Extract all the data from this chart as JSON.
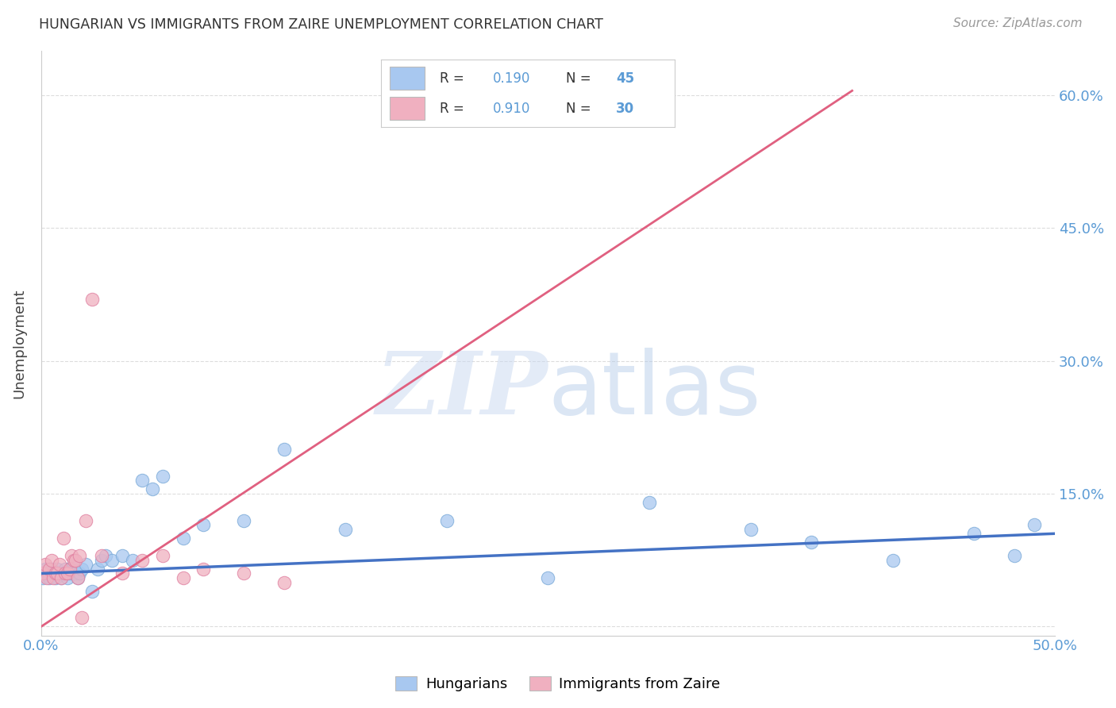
{
  "title": "HUNGARIAN VS IMMIGRANTS FROM ZAIRE UNEMPLOYMENT CORRELATION CHART",
  "source": "Source: ZipAtlas.com",
  "ylabel": "Unemployment",
  "y_ticks": [
    0.0,
    0.15,
    0.3,
    0.45,
    0.6
  ],
  "y_tick_labels_right": [
    "",
    "15.0%",
    "30.0%",
    "45.0%",
    "60.0%"
  ],
  "xlim": [
    0.0,
    0.5
  ],
  "ylim": [
    -0.01,
    0.65
  ],
  "color_blue": "#A8C8F0",
  "color_blue_edge": "#7AAAD8",
  "color_pink": "#F0B0C0",
  "color_pink_edge": "#E080A0",
  "color_blue_line": "#4472C4",
  "color_pink_line": "#E06080",
  "color_axis_label": "#5B9BD5",
  "color_r_text": "#333333",
  "color_n_text": "#5B9BD5",
  "blue_x": [
    0.001,
    0.002,
    0.003,
    0.004,
    0.005,
    0.006,
    0.007,
    0.008,
    0.009,
    0.01,
    0.011,
    0.012,
    0.013,
    0.014,
    0.015,
    0.016,
    0.017,
    0.018,
    0.019,
    0.02,
    0.022,
    0.025,
    0.028,
    0.03,
    0.032,
    0.035,
    0.04,
    0.045,
    0.05,
    0.055,
    0.06,
    0.07,
    0.08,
    0.1,
    0.12,
    0.15,
    0.2,
    0.25,
    0.3,
    0.35,
    0.38,
    0.42,
    0.46,
    0.48,
    0.49
  ],
  "blue_y": [
    0.055,
    0.065,
    0.06,
    0.055,
    0.065,
    0.06,
    0.055,
    0.065,
    0.06,
    0.055,
    0.06,
    0.065,
    0.055,
    0.06,
    0.065,
    0.07,
    0.06,
    0.055,
    0.06,
    0.065,
    0.07,
    0.04,
    0.065,
    0.075,
    0.08,
    0.075,
    0.08,
    0.075,
    0.165,
    0.155,
    0.17,
    0.1,
    0.115,
    0.12,
    0.2,
    0.11,
    0.12,
    0.055,
    0.14,
    0.11,
    0.095,
    0.075,
    0.105,
    0.08,
    0.115
  ],
  "pink_x": [
    0.001,
    0.002,
    0.003,
    0.004,
    0.005,
    0.006,
    0.007,
    0.008,
    0.009,
    0.01,
    0.011,
    0.012,
    0.013,
    0.014,
    0.015,
    0.016,
    0.017,
    0.018,
    0.019,
    0.02,
    0.022,
    0.025,
    0.03,
    0.04,
    0.05,
    0.06,
    0.07,
    0.08,
    0.1,
    0.12
  ],
  "pink_y": [
    0.06,
    0.07,
    0.055,
    0.065,
    0.075,
    0.055,
    0.06,
    0.06,
    0.07,
    0.055,
    0.1,
    0.06,
    0.06,
    0.065,
    0.08,
    0.075,
    0.075,
    0.055,
    0.08,
    0.01,
    0.12,
    0.37,
    0.08,
    0.06,
    0.075,
    0.08,
    0.055,
    0.065,
    0.06,
    0.05
  ],
  "blue_trend_x": [
    0.0,
    0.5
  ],
  "blue_trend_y": [
    0.06,
    0.105
  ],
  "pink_trend_x": [
    0.0,
    0.4
  ],
  "pink_trend_y": [
    0.0,
    0.605
  ],
  "watermark_zip": "ZIP",
  "watermark_atlas": "atlas",
  "background_color": "#FFFFFF",
  "grid_color": "#DDDDDD"
}
